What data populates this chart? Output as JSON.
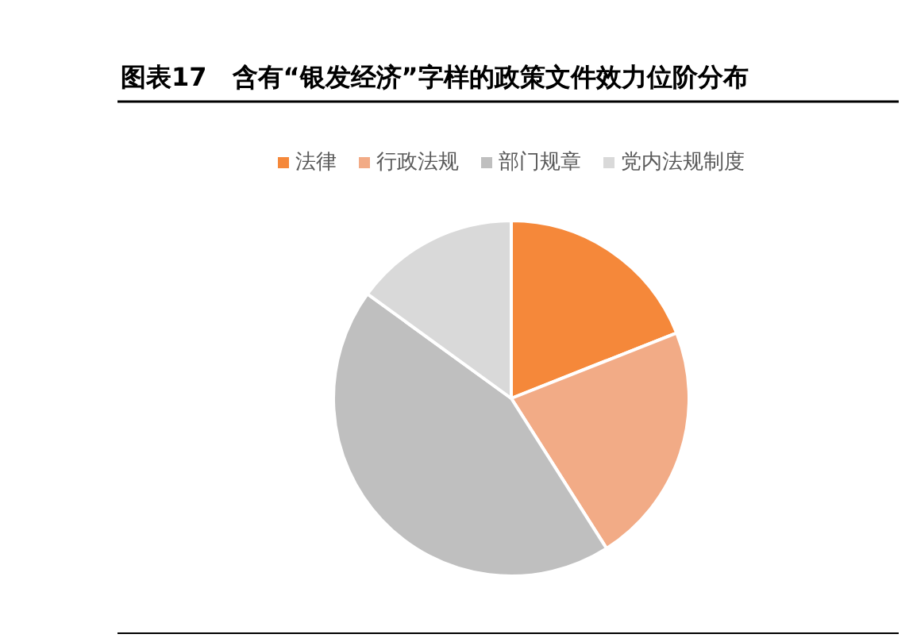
{
  "chart_data": {
    "type": "pie",
    "title": "图表17　含有“银发经济”字样的政策文件效力位阶分布",
    "categories": [
      "法律",
      "行政法规",
      "部门规章",
      "党内法规制度"
    ],
    "values": [
      19,
      22,
      44,
      15
    ],
    "colors": [
      "#f5883a",
      "#f2ab86",
      "#bfbfbf",
      "#d9d9d9"
    ],
    "legend": "top"
  }
}
